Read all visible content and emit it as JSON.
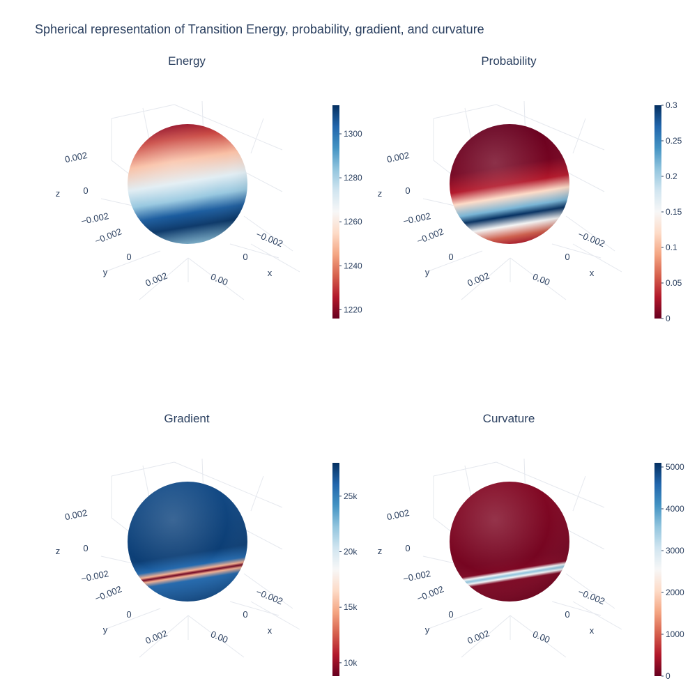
{
  "title": "Spherical representation of Transition Energy, probability, gradient, and curvature",
  "chart_data": [
    {
      "type": "surface",
      "title": "Energy",
      "colorscale": "RdBu",
      "colorbar": {
        "min": 1216,
        "max": 1313,
        "ticks": [
          "1220",
          "1240",
          "1260",
          "1280",
          "1300"
        ],
        "tick_values": [
          1220,
          1240,
          1260,
          1280,
          1300
        ]
      },
      "axes": {
        "x_ticks": [
          "−0.002",
          "0",
          "0.00"
        ],
        "y_ticks": [
          "−0.002",
          "0",
          "0.002"
        ],
        "z_ticks": [
          "−0.002",
          "0",
          "0.002"
        ],
        "xlabel": "x",
        "ylabel": "y",
        "zlabel": "z"
      },
      "bands": [
        {
          "pos": 0.0,
          "value": 1222
        },
        {
          "pos": 0.12,
          "value": 1232
        },
        {
          "pos": 0.3,
          "value": 1250
        },
        {
          "pos": 0.48,
          "value": 1270
        },
        {
          "pos": 0.62,
          "value": 1283
        },
        {
          "pos": 0.74,
          "value": 1305
        },
        {
          "pos": 0.85,
          "value": 1312
        },
        {
          "pos": 1.0,
          "value": 1285
        }
      ]
    },
    {
      "type": "surface",
      "title": "Probability",
      "colorscale": "RdBu",
      "colorbar": {
        "min": 0,
        "max": 0.3,
        "ticks": [
          "0",
          "0.05",
          "0.1",
          "0.15",
          "0.2",
          "0.25",
          "0.3"
        ],
        "tick_values": [
          0,
          0.05,
          0.1,
          0.15,
          0.2,
          0.25,
          0.3
        ]
      },
      "axes": {
        "x_ticks": [
          "−0.002",
          "0",
          "0.00"
        ],
        "y_ticks": [
          "−0.002",
          "0",
          "0.002"
        ],
        "z_ticks": [
          "−0.002",
          "0",
          "0.002"
        ],
        "xlabel": "x",
        "ylabel": "y",
        "zlabel": "z"
      },
      "bands": [
        {
          "pos": 0.0,
          "value": 0.0
        },
        {
          "pos": 0.35,
          "value": 0.005
        },
        {
          "pos": 0.5,
          "value": 0.03
        },
        {
          "pos": 0.6,
          "value": 0.12
        },
        {
          "pos": 0.7,
          "value": 0.22
        },
        {
          "pos": 0.76,
          "value": 0.3
        },
        {
          "pos": 0.84,
          "value": 0.15
        },
        {
          "pos": 0.93,
          "value": 0.06
        },
        {
          "pos": 1.0,
          "value": 0.03
        }
      ]
    },
    {
      "type": "surface",
      "title": "Gradient",
      "colorscale": "RdBu",
      "colorbar": {
        "min": 8800,
        "max": 28000,
        "ticks": [
          "10k",
          "15k",
          "20k",
          "25k"
        ],
        "tick_values": [
          10000,
          15000,
          20000,
          25000
        ]
      },
      "axes": {
        "x_ticks": [
          "−0.002",
          "0",
          "0.00"
        ],
        "y_ticks": [
          "−0.002",
          "0",
          "0.002"
        ],
        "z_ticks": [
          "−0.002",
          "0",
          "0.002"
        ],
        "xlabel": "x",
        "ylabel": "y",
        "zlabel": "z"
      },
      "bands": [
        {
          "pos": 0.0,
          "value": 27000
        },
        {
          "pos": 0.6,
          "value": 27500
        },
        {
          "pos": 0.7,
          "value": 26000
        },
        {
          "pos": 0.74,
          "value": 15000
        },
        {
          "pos": 0.76,
          "value": 9000
        },
        {
          "pos": 0.78,
          "value": 15000
        },
        {
          "pos": 0.82,
          "value": 26000
        },
        {
          "pos": 1.0,
          "value": 27000
        }
      ]
    },
    {
      "type": "surface",
      "title": "Curvature",
      "colorscale": "RdBu",
      "colorbar": {
        "min": 0,
        "max": 5100,
        "ticks": [
          "0",
          "1000",
          "2000",
          "3000",
          "4000",
          "5000"
        ],
        "tick_values": [
          0,
          1000,
          2000,
          3000,
          4000,
          5000
        ]
      },
      "axes": {
        "x_ticks": [
          "−0.002",
          "0",
          "0.00"
        ],
        "y_ticks": [
          "−0.002",
          "0",
          "0.002"
        ],
        "z_ticks": [
          "−0.002",
          "0",
          "0.002"
        ],
        "xlabel": "x",
        "ylabel": "y",
        "zlabel": "z"
      },
      "bands": [
        {
          "pos": 0.0,
          "value": 200
        },
        {
          "pos": 0.65,
          "value": 100
        },
        {
          "pos": 0.73,
          "value": 150
        },
        {
          "pos": 0.755,
          "value": 2600
        },
        {
          "pos": 0.775,
          "value": 3600
        },
        {
          "pos": 0.795,
          "value": 2600
        },
        {
          "pos": 0.82,
          "value": 150
        },
        {
          "pos": 1.0,
          "value": 100
        }
      ]
    }
  ]
}
